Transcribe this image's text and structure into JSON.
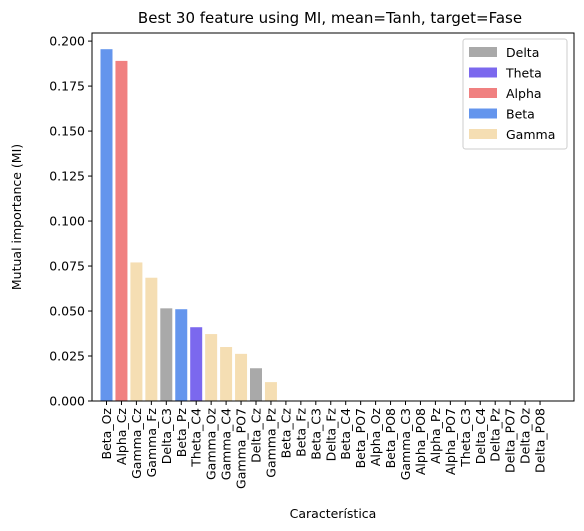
{
  "chart_data": {
    "type": "bar",
    "title": "Best 30 feature using MI, mean=Tanh, target=Fase",
    "xlabel": "Característica",
    "ylabel": "Mutual importance (MI)",
    "ylim": [
      0,
      0.2045
    ],
    "yticks": [
      0.0,
      0.025,
      0.05,
      0.075,
      0.1,
      0.125,
      0.15,
      0.175,
      0.2
    ],
    "ytick_labels": [
      "0.000",
      "0.025",
      "0.050",
      "0.075",
      "0.100",
      "0.125",
      "0.150",
      "0.175",
      "0.200"
    ],
    "grid": false,
    "legend_position": "top-right",
    "legend": [
      {
        "name": "Delta",
        "color": "#a9a9a9"
      },
      {
        "name": "Theta",
        "color": "#7b68ee"
      },
      {
        "name": "Alpha",
        "color": "#f08080"
      },
      {
        "name": "Beta",
        "color": "#6495ed"
      },
      {
        "name": "Gamma",
        "color": "#f5deb3"
      }
    ],
    "categories": [
      "Beta_Oz",
      "Alpha_Cz",
      "Gamma_Cz",
      "Gamma_Fz",
      "Delta_C3",
      "Beta_Pz",
      "Theta_C4",
      "Gamma_Oz",
      "Gamma_C4",
      "Gamma_PO7",
      "Delta_Cz",
      "Gamma_Pz",
      "Beta_Cz",
      "Beta_Fz",
      "Beta_C3",
      "Delta_Fz",
      "Beta_C4",
      "Beta_PO7",
      "Alpha_Oz",
      "Beta_PO8",
      "Gamma_C3",
      "Alpha_PO8",
      "Alpha_Pz",
      "Alpha_PO7",
      "Theta_C3",
      "Delta_C4",
      "Delta_Pz",
      "Delta_PO7",
      "Delta_Oz",
      "Delta_PO8"
    ],
    "values": [
      0.1955,
      0.189,
      0.077,
      0.0685,
      0.0515,
      0.051,
      0.041,
      0.0372,
      0.03,
      0.0262,
      0.0182,
      0.0105,
      0,
      0,
      0,
      0,
      0,
      0,
      0,
      0,
      0,
      0,
      0,
      0,
      0,
      0,
      0,
      0,
      0,
      0
    ],
    "bands": [
      "Beta",
      "Alpha",
      "Gamma",
      "Gamma",
      "Delta",
      "Beta",
      "Theta",
      "Gamma",
      "Gamma",
      "Gamma",
      "Delta",
      "Gamma",
      "Beta",
      "Beta",
      "Beta",
      "Delta",
      "Beta",
      "Beta",
      "Alpha",
      "Beta",
      "Gamma",
      "Alpha",
      "Alpha",
      "Alpha",
      "Theta",
      "Delta",
      "Delta",
      "Delta",
      "Delta",
      "Delta"
    ]
  }
}
